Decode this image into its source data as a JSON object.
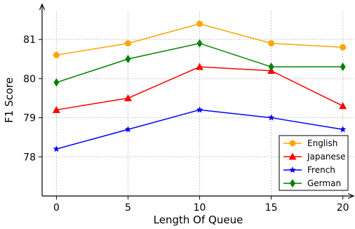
{
  "chart_data": {
    "type": "line",
    "title": "",
    "xlabel": "Length Of Queue",
    "ylabel": "F1 Score",
    "x": [
      0,
      5,
      10,
      15,
      20
    ],
    "xlim": [
      -1,
      20.8
    ],
    "ylim": [
      77,
      81.9
    ],
    "xticks": [
      "0",
      "5",
      "10",
      "15",
      "20"
    ],
    "yticks": [
      "78",
      "79",
      "80",
      "81"
    ],
    "grid": true,
    "legend_position": "bottom-right",
    "series": [
      {
        "name": "English",
        "values": [
          80.6,
          80.9,
          81.4,
          80.9,
          80.8
        ],
        "color": "#FFA500",
        "marker": "circle"
      },
      {
        "name": "Japanese",
        "values": [
          79.2,
          79.5,
          80.3,
          80.2,
          79.3
        ],
        "color": "#FF0000",
        "marker": "triangle"
      },
      {
        "name": "French",
        "values": [
          78.2,
          78.7,
          79.2,
          79.0,
          78.7
        ],
        "color": "#0000FF",
        "marker": "star"
      },
      {
        "name": "German",
        "values": [
          79.9,
          80.5,
          80.9,
          80.3,
          80.3
        ],
        "color": "#008000",
        "marker": "diamond"
      }
    ]
  }
}
